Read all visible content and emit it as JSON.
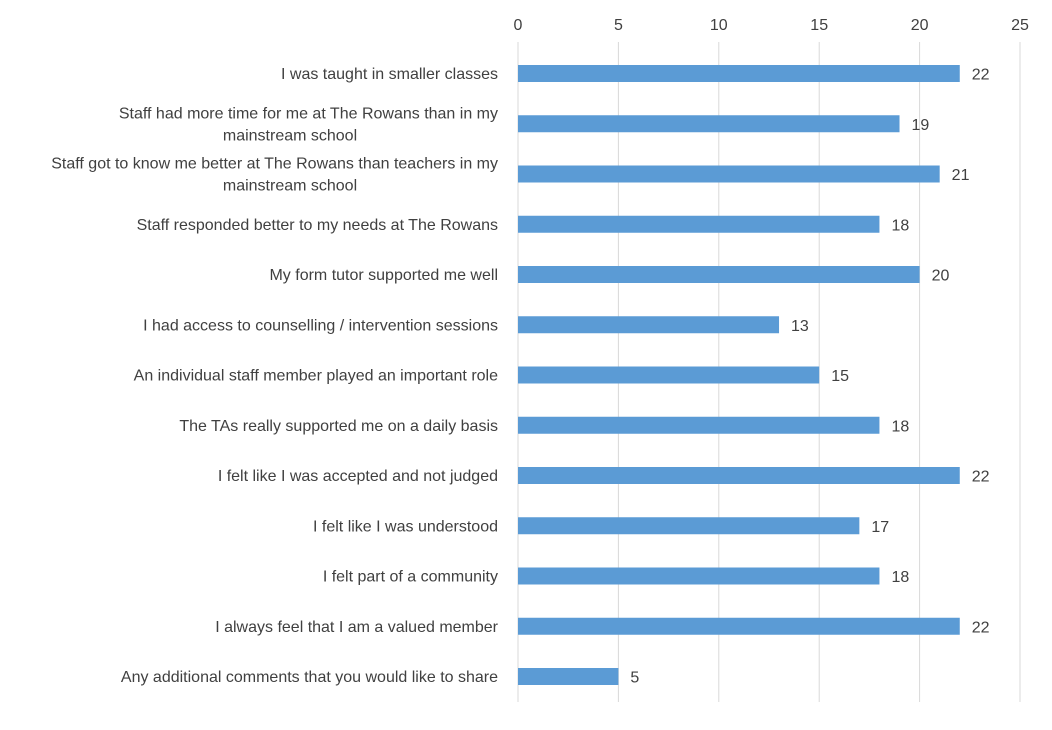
{
  "chart_data": {
    "type": "bar",
    "orientation": "horizontal",
    "title": "",
    "xlabel": "",
    "ylabel": "",
    "xlim": [
      0,
      25
    ],
    "x_ticks": [
      0,
      5,
      10,
      15,
      20,
      25
    ],
    "x_axis_position": "top",
    "grid": true,
    "legend": "none",
    "bar_color": "#5b9bd5",
    "categories": [
      "I was taught in smaller classes",
      "Staff had more time for me at The Rowans than in my mainstream school",
      "Staff got to know me better at The Rowans than teachers in my mainstream school",
      "Staff responded better to my needs at The Rowans",
      "My form tutor supported me well",
      "I had access to counselling / intervention sessions",
      "An individual staff member played an important role",
      "The TAs really supported me on a daily basis",
      "I felt like I was accepted and not judged",
      "I felt like I was understood",
      "I felt part of a community",
      "I always feel that I am a valued member",
      "Any additional comments that you would like to share"
    ],
    "category_lines": [
      [
        "I was taught in smaller classes"
      ],
      [
        "Staff had more time for me at The Rowans than in my",
        "mainstream school"
      ],
      [
        "Staff got to know me better at The Rowans than teachers in my",
        "mainstream school"
      ],
      [
        "Staff responded better to my needs at The Rowans"
      ],
      [
        "My form tutor supported me well"
      ],
      [
        "I had access to counselling / intervention sessions"
      ],
      [
        "An individual staff member played an important role"
      ],
      [
        "The TAs really supported me on a daily basis"
      ],
      [
        "I felt like I was accepted and not judged"
      ],
      [
        "I felt like I was understood"
      ],
      [
        "I felt part of a community"
      ],
      [
        "I always feel that I am a valued member"
      ],
      [
        "Any additional comments that you would like to share"
      ]
    ],
    "values": [
      22,
      19,
      21,
      18,
      20,
      13,
      15,
      18,
      22,
      17,
      18,
      22,
      5
    ],
    "data_labels": true
  }
}
